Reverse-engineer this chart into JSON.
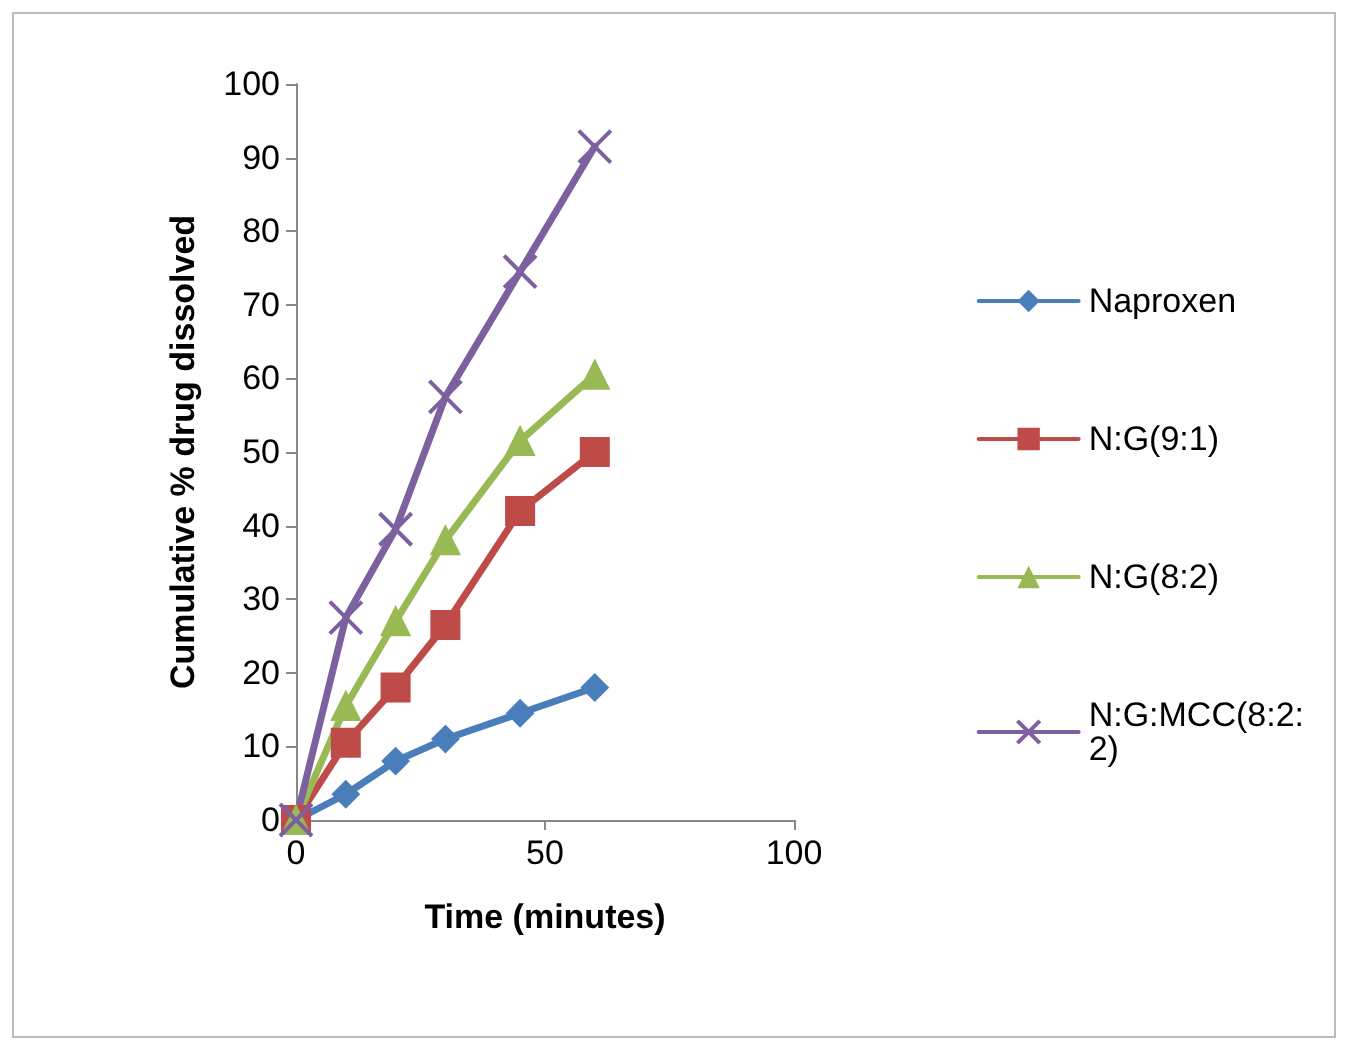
{
  "chart_data": {
    "type": "line",
    "xlabel": "Time (minutes)",
    "ylabel": "Cumulative % drug dissolved",
    "x": [
      0,
      10,
      20,
      30,
      45,
      60
    ],
    "xlim": [
      0,
      100
    ],
    "xticks": [
      0,
      50,
      100
    ],
    "ylim": [
      0,
      100
    ],
    "yticks": [
      0,
      10,
      20,
      30,
      40,
      50,
      60,
      70,
      80,
      90,
      100
    ],
    "grid": false,
    "legend": "right",
    "series": [
      {
        "name": "Naproxen",
        "color": "#4a7ebb",
        "marker": "diamond",
        "values": [
          0,
          3.5,
          8,
          11,
          14.5,
          18
        ]
      },
      {
        "name": "N:G(9:1)",
        "color": "#be4b48",
        "marker": "square",
        "values": [
          0,
          10.5,
          18,
          26.5,
          42,
          50
        ]
      },
      {
        "name": "N:G(8:2)",
        "color": "#98b954",
        "marker": "triangle",
        "values": [
          0,
          15.5,
          27,
          38,
          51.5,
          60.5
        ]
      },
      {
        "name": "N:G:MCC(8:2:2)",
        "color": "#7d60a0",
        "marker": "cross",
        "values": [
          0,
          27.5,
          39.5,
          57.5,
          74.5,
          91.5
        ]
      }
    ]
  }
}
